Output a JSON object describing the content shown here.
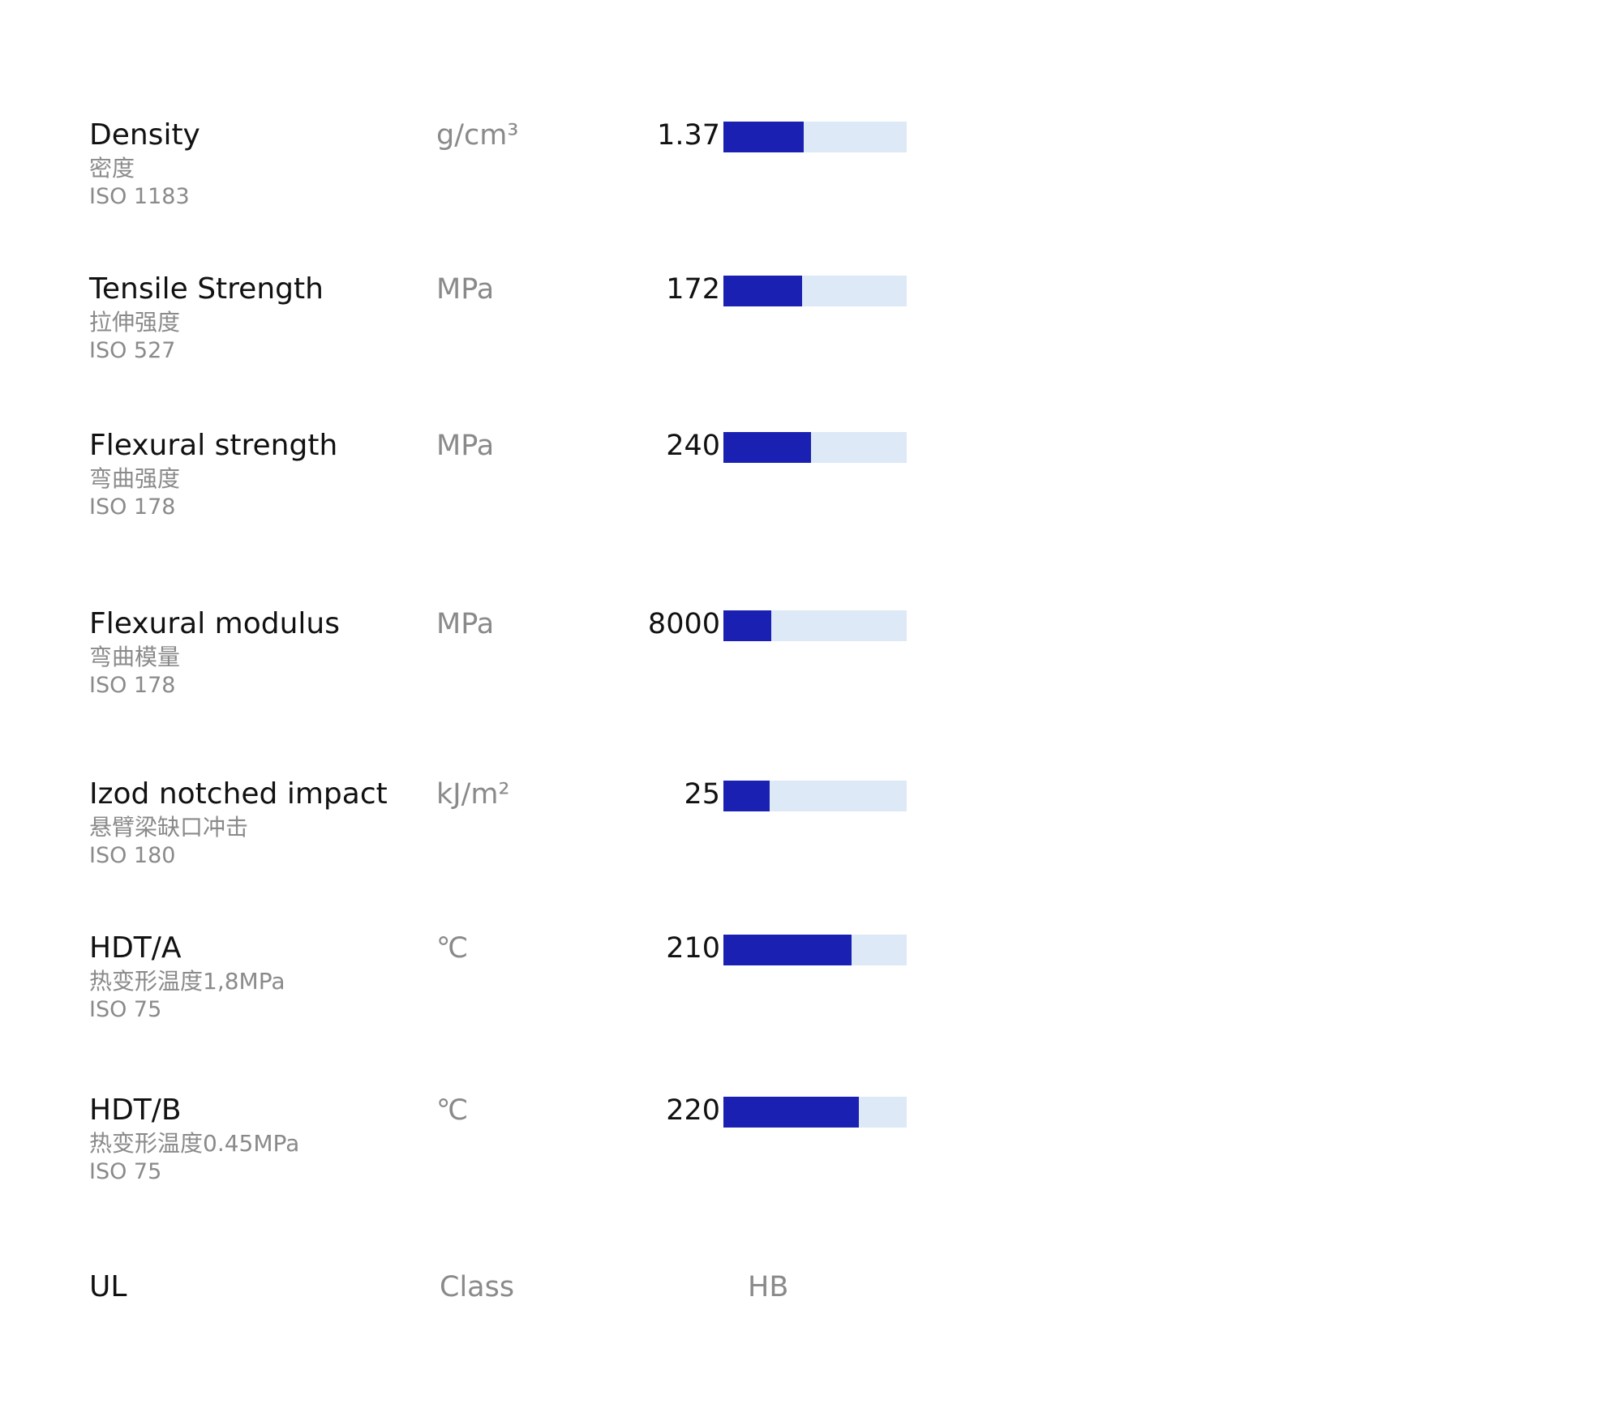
{
  "colors": {
    "bar_fill": "#1a20b2",
    "bar_track": "#dde9f6",
    "text_primary": "#111111",
    "text_secondary": "#8a8a8a"
  },
  "chart_data": {
    "type": "bar",
    "orientation": "horizontal",
    "rows": [
      {
        "name": "Density",
        "name_cn": "密度",
        "standard": "ISO 1183",
        "unit": "g/cm³",
        "value": "1.37",
        "fill_fraction": 0.44
      },
      {
        "name": "Tensile Strength",
        "name_cn": "拉伸强度",
        "standard": "ISO 527",
        "unit": "MPa",
        "value": "172",
        "fill_fraction": 0.43
      },
      {
        "name": "Flexural strength",
        "name_cn": "弯曲强度",
        "standard": "ISO 178",
        "unit": "MPa",
        "value": "240",
        "fill_fraction": 0.48
      },
      {
        "name": "Flexural modulus",
        "name_cn": "弯曲模量",
        "standard": "ISO 178",
        "unit": "MPa",
        "value": "8000",
        "fill_fraction": 0.26
      },
      {
        "name": "Izod notched impact",
        "name_cn": "悬臂梁缺口冲击",
        "standard": "ISO 180",
        "unit": "kJ/m²",
        "value": "25",
        "fill_fraction": 0.25
      },
      {
        "name": "HDT/A",
        "name_cn": "热变形温度1,8MPa",
        "standard": "ISO 75",
        "unit": "℃",
        "value": "210",
        "fill_fraction": 0.7
      },
      {
        "name": "HDT/B",
        "name_cn": "热变形温度0.45MPa",
        "standard": "ISO 75",
        "unit": "℃",
        "value": "220",
        "fill_fraction": 0.74
      }
    ],
    "extra_row": {
      "name": "UL",
      "unit": "Class",
      "value": "HB"
    }
  }
}
